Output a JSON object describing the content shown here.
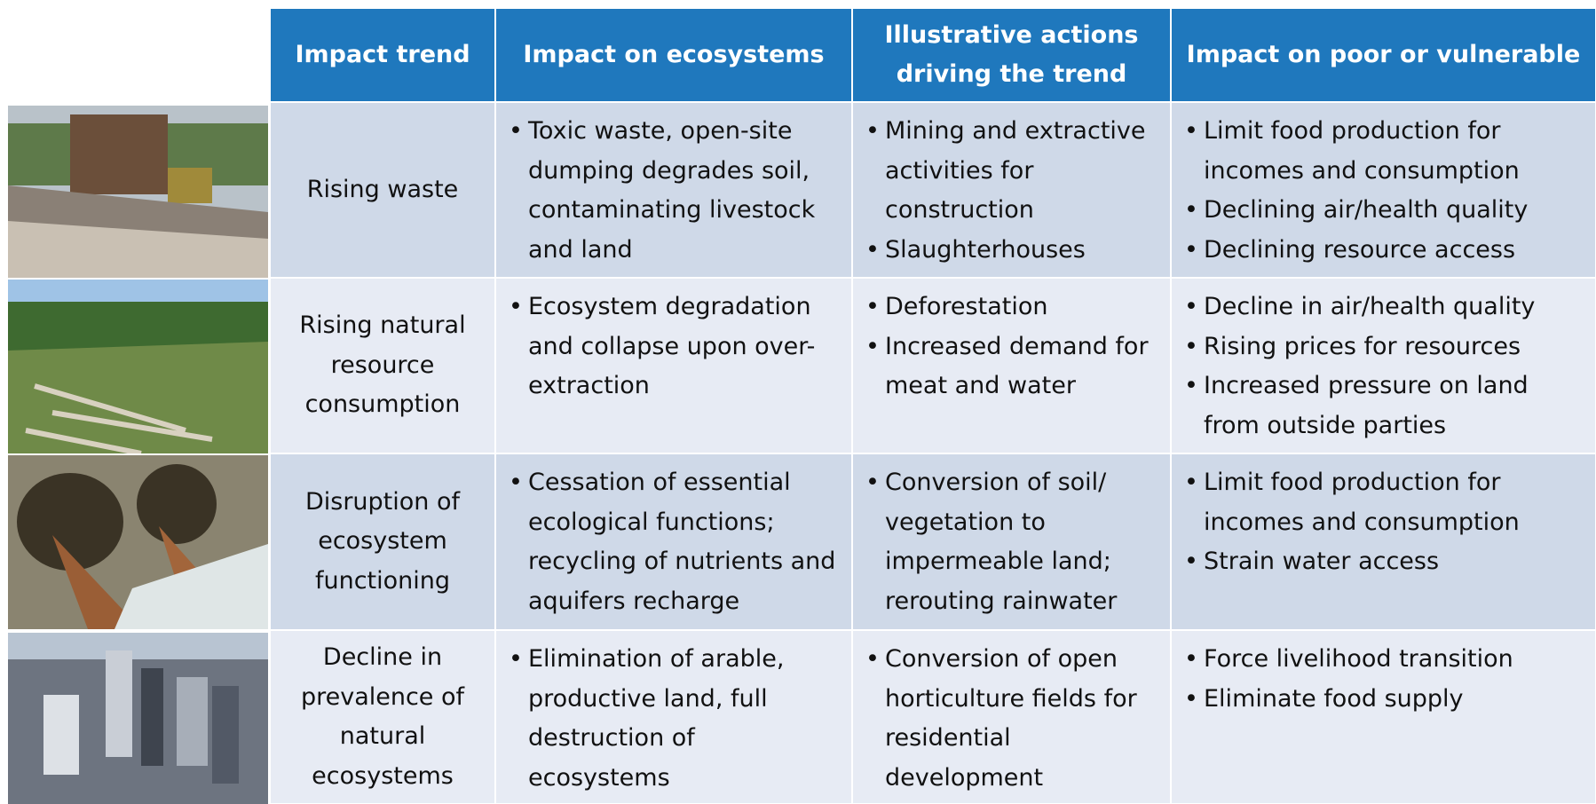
{
  "table": {
    "header": [
      "Impact trend",
      "Impact on ecosystems",
      "Illustrative actions driving the trend",
      "Impact on poor or vulnerable"
    ],
    "rows": [
      {
        "trend": "Rising waste",
        "ecosystems": [
          "Toxic waste, open-site dumping degrades soil, contaminating livestock and land"
        ],
        "actions": [
          "Mining and extractive activities for construction",
          "Slaughterhouses"
        ],
        "vulnerable": [
          "Limit food production for incomes and consumption",
          "Declining air/health quality",
          "Declining resource access"
        ]
      },
      {
        "trend": "Rising natural resource consumption",
        "ecosystems": [
          "Ecosystem degradation and collapse upon over-extraction"
        ],
        "actions": [
          "Deforestation",
          "Increased demand for meat and water"
        ],
        "vulnerable": [
          "Decline in air/health quality",
          "Rising prices for resources",
          "Increased pressure on land from outside parties"
        ]
      },
      {
        "trend": "Disruption of ecosystem functioning",
        "ecosystems": [
          "Cessation of essential ecological functions; recycling of nutrients and aquifers recharge"
        ],
        "actions": [
          "Conversion of soil/ vegetation to impermeable land; rerouting rainwater"
        ],
        "vulnerable": [
          "Limit food production for incomes and consumption",
          "Strain water access"
        ]
      },
      {
        "trend": "Decline in prevalence of natural ecosystems",
        "ecosystems": [
          "Elimination of arable, productive land, full destruction of ecosystems"
        ],
        "actions": [
          "Conversion of open horticulture fields for residential development"
        ],
        "vulnerable": [
          "Force livelihood transition",
          "Eliminate food supply"
        ]
      }
    ]
  }
}
